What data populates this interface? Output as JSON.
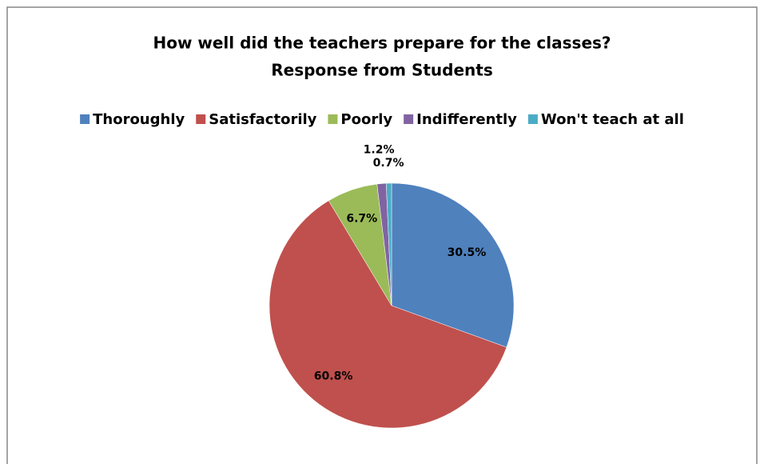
{
  "chart_data": {
    "type": "pie",
    "title": "How well did the teachers prepare for the classes?",
    "subtitle": "Response from Students",
    "categories": [
      "Thoroughly",
      "Satisfactorily",
      "Poorly",
      "Indifferently",
      "Won't teach at all"
    ],
    "values": [
      30.5,
      60.8,
      6.7,
      1.2,
      0.7
    ],
    "value_labels": [
      "30.5%",
      "60.8%",
      "6.7%",
      "1.2%",
      "0.7%"
    ],
    "colors": [
      "#4f81bd",
      "#c0504d",
      "#9bbb59",
      "#8064a2",
      "#4bacc6"
    ],
    "legend": "top"
  }
}
